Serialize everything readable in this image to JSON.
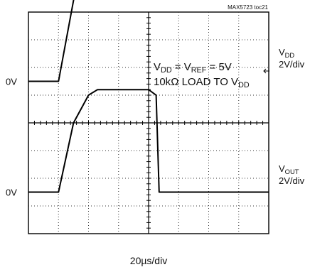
{
  "chart_data": {
    "type": "line",
    "figure_id": "MAX5723 toc21",
    "x_scale_label": "20µs/div",
    "grid": true,
    "divisions": {
      "x": 8,
      "y": 8
    },
    "annotation": {
      "line1": {
        "v": "V",
        "dd_sub": "DD",
        "eq1": " = V",
        "ref_sub": "REF",
        "eq2": " = 5V"
      },
      "line2": {
        "pre": "10k",
        "omega": "Ω",
        "mid": " LOAD TO V",
        "sub": "DD"
      }
    },
    "channels": [
      {
        "name": "VDD",
        "label_main": "V",
        "label_sub": "DD",
        "scale": "2V/div",
        "ground_label": "0V",
        "ground_div": 1.5,
        "points_div": [
          [
            0,
            1.5
          ],
          [
            1.0,
            1.5
          ],
          [
            1.6,
            5.0
          ],
          [
            2.0,
            6.0
          ],
          [
            2.2,
            6.1
          ],
          [
            8.0,
            6.1
          ]
        ]
      },
      {
        "name": "VOUT",
        "label_main": "V",
        "label_sub": "OUT",
        "scale": "2V/div",
        "ground_label": "0V",
        "ground_div": -2.5,
        "points_div": [
          [
            0,
            -2.5
          ],
          [
            1.0,
            -2.5
          ],
          [
            1.5,
            0.0
          ],
          [
            2.0,
            1.0
          ],
          [
            2.3,
            1.2
          ],
          [
            4.0,
            1.2
          ],
          [
            4.25,
            1.0
          ],
          [
            4.35,
            -2.5
          ],
          [
            8.0,
            -2.5
          ]
        ]
      }
    ]
  }
}
